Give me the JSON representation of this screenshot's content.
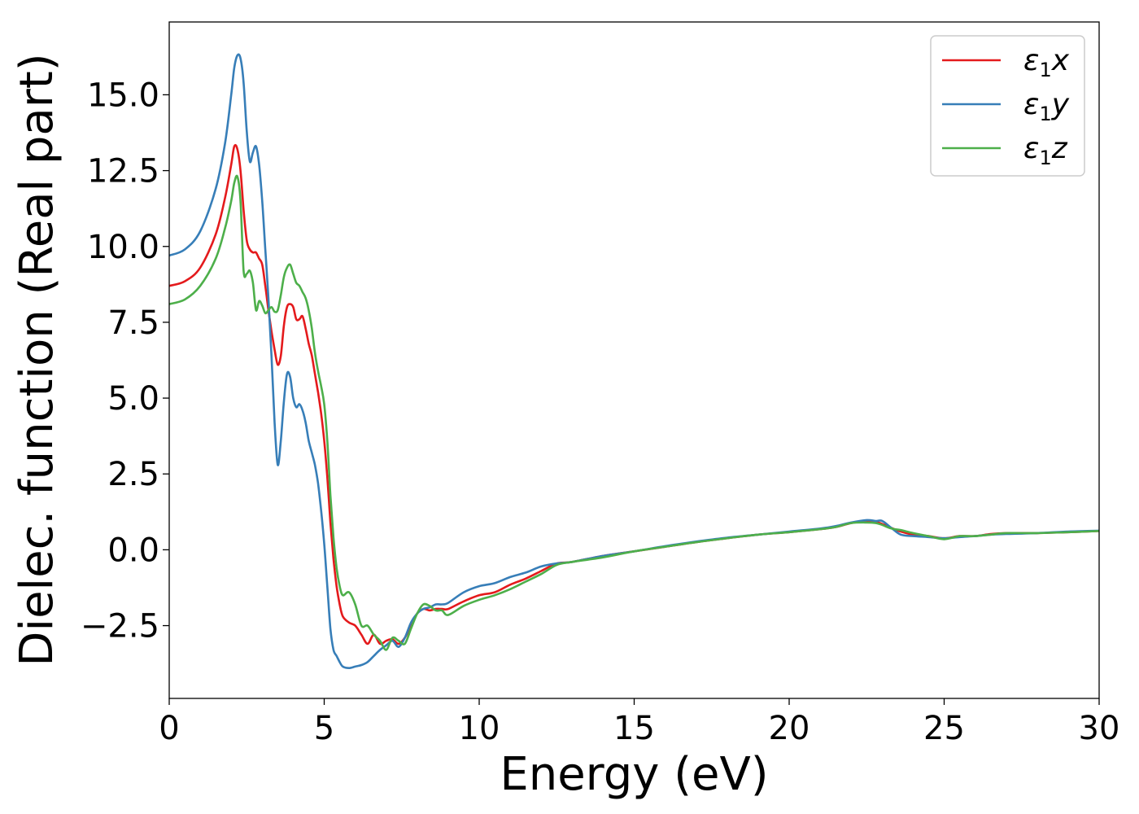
{
  "chart_data": {
    "type": "line",
    "xlabel": "Energy (eV)",
    "ylabel": "Dielec. function (Real part)",
    "xlim": [
      0,
      30
    ],
    "ylim": [
      -4.9,
      17.4
    ],
    "xticks": [
      0,
      5,
      10,
      15,
      20,
      25,
      30
    ],
    "xtick_labels": [
      "0",
      "5",
      "10",
      "15",
      "20",
      "25",
      "30"
    ],
    "yticks": [
      -2.5,
      0,
      2.5,
      5,
      7.5,
      10,
      12.5,
      15
    ],
    "ytick_labels": [
      "−2.5",
      "0.0",
      "2.5",
      "5.0",
      "7.5",
      "10.0",
      "12.5",
      "15.0"
    ],
    "grid": false,
    "legend_position": "top-right",
    "series": [
      {
        "name": "ε₁x",
        "legend_main": "ε",
        "legend_sub": "1",
        "legend_var": "x",
        "color": "#e41a1c",
        "x": [
          0,
          0.5,
          1.0,
          1.5,
          1.8,
          2.0,
          2.1,
          2.2,
          2.3,
          2.4,
          2.5,
          2.6,
          2.7,
          2.8,
          2.9,
          3.0,
          3.1,
          3.2,
          3.3,
          3.4,
          3.5,
          3.6,
          3.7,
          3.8,
          3.9,
          4.0,
          4.1,
          4.2,
          4.3,
          4.4,
          4.5,
          4.6,
          4.7,
          4.8,
          4.9,
          5.0,
          5.1,
          5.2,
          5.3,
          5.4,
          5.5,
          5.6,
          5.8,
          6.0,
          6.2,
          6.4,
          6.6,
          6.8,
          7.0,
          7.2,
          7.4,
          7.6,
          7.8,
          8.0,
          8.2,
          8.4,
          8.6,
          8.8,
          9.0,
          9.5,
          10.0,
          10.5,
          11.0,
          11.5,
          12.0,
          12.5,
          13.0,
          14.0,
          15.0,
          16.0,
          17.0,
          18.0,
          19.0,
          20.0,
          21.0,
          21.5,
          22.0,
          22.5,
          22.8,
          23.0,
          23.3,
          23.6,
          24.0,
          24.5,
          25.0,
          25.5,
          26.0,
          26.5,
          27.0,
          28.0,
          29.0,
          30.0
        ],
        "y": [
          8.7,
          8.85,
          9.3,
          10.4,
          11.6,
          12.7,
          13.3,
          13.2,
          12.5,
          11.2,
          10.2,
          9.9,
          9.8,
          9.8,
          9.6,
          9.4,
          8.7,
          7.9,
          7.2,
          6.6,
          6.1,
          6.4,
          7.4,
          8.0,
          8.1,
          8.0,
          7.6,
          7.6,
          7.7,
          7.3,
          6.8,
          6.4,
          5.8,
          5.2,
          4.5,
          3.6,
          2.4,
          0.9,
          -0.3,
          -1.2,
          -1.8,
          -2.2,
          -2.4,
          -2.5,
          -2.8,
          -3.1,
          -2.8,
          -3.1,
          -3.0,
          -2.95,
          -3.1,
          -2.9,
          -2.5,
          -2.1,
          -1.95,
          -2.0,
          -1.95,
          -1.95,
          -1.95,
          -1.7,
          -1.5,
          -1.4,
          -1.15,
          -0.95,
          -0.7,
          -0.45,
          -0.4,
          -0.2,
          -0.05,
          0.1,
          0.25,
          0.38,
          0.5,
          0.58,
          0.68,
          0.75,
          0.88,
          0.95,
          0.92,
          0.85,
          0.72,
          0.6,
          0.5,
          0.45,
          0.38,
          0.45,
          0.45,
          0.52,
          0.55,
          0.55,
          0.58,
          0.62
        ]
      },
      {
        "name": "ε₁y",
        "legend_main": "ε",
        "legend_sub": "1",
        "legend_var": "y",
        "color": "#377eb8",
        "x": [
          0,
          0.5,
          1.0,
          1.5,
          1.8,
          2.0,
          2.1,
          2.2,
          2.3,
          2.4,
          2.5,
          2.6,
          2.7,
          2.8,
          2.9,
          3.0,
          3.1,
          3.2,
          3.3,
          3.4,
          3.5,
          3.6,
          3.7,
          3.8,
          3.9,
          4.0,
          4.1,
          4.2,
          4.3,
          4.4,
          4.5,
          4.6,
          4.7,
          4.8,
          4.9,
          5.0,
          5.1,
          5.2,
          5.3,
          5.4,
          5.5,
          5.6,
          5.8,
          6.0,
          6.2,
          6.4,
          6.6,
          6.8,
          7.0,
          7.2,
          7.4,
          7.6,
          7.8,
          8.0,
          8.2,
          8.4,
          8.6,
          8.8,
          9.0,
          9.5,
          10.0,
          10.5,
          11.0,
          11.5,
          12.0,
          12.5,
          13.0,
          14.0,
          15.0,
          16.0,
          17.0,
          18.0,
          19.0,
          20.0,
          21.0,
          21.5,
          22.0,
          22.5,
          22.8,
          23.0,
          23.3,
          23.6,
          24.0,
          24.5,
          25.0,
          25.5,
          26.0,
          26.5,
          27.0,
          28.0,
          29.0,
          30.0
        ],
        "y": [
          9.7,
          9.9,
          10.5,
          11.9,
          13.4,
          15.0,
          15.9,
          16.3,
          16.2,
          15.4,
          13.8,
          12.8,
          13.1,
          13.3,
          12.7,
          11.5,
          9.9,
          8.3,
          6.4,
          4.2,
          2.8,
          3.6,
          4.9,
          5.8,
          5.7,
          5.0,
          4.7,
          4.8,
          4.6,
          4.2,
          3.6,
          3.2,
          2.8,
          2.2,
          1.3,
          0.2,
          -1.2,
          -2.6,
          -3.3,
          -3.5,
          -3.7,
          -3.85,
          -3.9,
          -3.85,
          -3.8,
          -3.7,
          -3.5,
          -3.3,
          -3.15,
          -3.0,
          -3.2,
          -2.9,
          -2.4,
          -2.1,
          -1.95,
          -1.9,
          -1.8,
          -1.8,
          -1.75,
          -1.4,
          -1.2,
          -1.1,
          -0.9,
          -0.75,
          -0.55,
          -0.45,
          -0.4,
          -0.2,
          -0.05,
          0.12,
          0.27,
          0.4,
          0.5,
          0.6,
          0.7,
          0.78,
          0.9,
          0.98,
          0.95,
          0.95,
          0.72,
          0.5,
          0.45,
          0.42,
          0.38,
          0.42,
          0.45,
          0.5,
          0.52,
          0.55,
          0.6,
          0.63
        ]
      },
      {
        "name": "ε₁z",
        "legend_main": "ε",
        "legend_sub": "1",
        "legend_var": "z",
        "color": "#4daf4a",
        "x": [
          0,
          0.5,
          1.0,
          1.5,
          1.8,
          2.0,
          2.1,
          2.2,
          2.3,
          2.4,
          2.5,
          2.6,
          2.7,
          2.8,
          2.9,
          3.0,
          3.1,
          3.2,
          3.3,
          3.4,
          3.5,
          3.6,
          3.7,
          3.8,
          3.9,
          4.0,
          4.1,
          4.2,
          4.3,
          4.4,
          4.5,
          4.6,
          4.7,
          4.8,
          4.9,
          5.0,
          5.1,
          5.2,
          5.3,
          5.4,
          5.5,
          5.6,
          5.8,
          6.0,
          6.2,
          6.4,
          6.6,
          6.8,
          7.0,
          7.2,
          7.4,
          7.6,
          7.8,
          8.0,
          8.2,
          8.4,
          8.6,
          8.8,
          9.0,
          9.5,
          10.0,
          10.5,
          11.0,
          11.5,
          12.0,
          12.5,
          13.0,
          14.0,
          15.0,
          16.0,
          17.0,
          18.0,
          19.0,
          20.0,
          21.0,
          21.5,
          22.0,
          22.5,
          22.8,
          23.0,
          23.3,
          23.6,
          24.0,
          24.5,
          25.0,
          25.5,
          26.0,
          26.5,
          27.0,
          28.0,
          29.0,
          30.0
        ],
        "y": [
          8.1,
          8.25,
          8.7,
          9.6,
          10.6,
          11.5,
          12.1,
          12.3,
          11.5,
          9.2,
          9.1,
          9.2,
          8.8,
          7.9,
          8.2,
          8.05,
          7.8,
          7.9,
          8.0,
          7.85,
          7.9,
          8.4,
          9.0,
          9.3,
          9.4,
          9.1,
          8.8,
          8.7,
          8.5,
          8.3,
          7.9,
          7.3,
          6.5,
          5.9,
          5.4,
          4.8,
          3.6,
          1.8,
          0.4,
          -0.6,
          -1.2,
          -1.5,
          -1.4,
          -1.8,
          -2.5,
          -2.5,
          -2.8,
          -3.0,
          -3.3,
          -2.9,
          -3.0,
          -3.1,
          -2.6,
          -2.1,
          -1.8,
          -1.85,
          -2.0,
          -2.0,
          -2.15,
          -1.85,
          -1.65,
          -1.5,
          -1.3,
          -1.05,
          -0.8,
          -0.5,
          -0.4,
          -0.25,
          -0.05,
          0.1,
          0.25,
          0.38,
          0.5,
          0.58,
          0.68,
          0.75,
          0.88,
          0.9,
          0.88,
          0.82,
          0.7,
          0.65,
          0.55,
          0.45,
          0.35,
          0.45,
          0.45,
          0.5,
          0.55,
          0.55,
          0.58,
          0.62
        ]
      }
    ]
  }
}
